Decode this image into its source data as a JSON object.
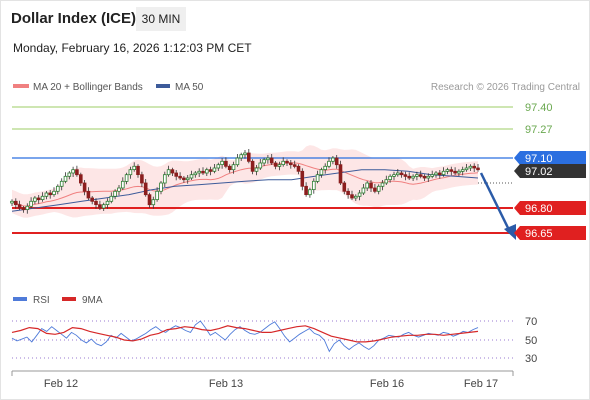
{
  "header": {
    "title": "Dollar Index (ICE)",
    "timeframe": "30 MIN",
    "datetime": "Monday, February 16, 2026 1:12:03 PM CET"
  },
  "colors": {
    "bollinger": "#f08080",
    "bollinger_fill": "#fde2e2",
    "ma50": "#3d5b9a",
    "target": "#7cb342",
    "pivot": "#2b6fe0",
    "support": "#e02020",
    "current": "#333333",
    "candle_up": "#2e7d32",
    "candle_down": "#8b1e1e",
    "rsi": "#4f7bd9",
    "rsi_ma": "#d62828",
    "arrow": "#2b5ba8"
  },
  "legend": {
    "bb_label": "MA 20 + Bollinger Bands",
    "ma50_label": "MA 50",
    "source": "Research © 2026 Trading Central"
  },
  "levels": {
    "r2": "97.40",
    "r1": "97.27",
    "pivot": "97.10",
    "last": "97.02",
    "s1": "96.80",
    "s2": "96.65"
  },
  "rsi_panel": {
    "rsi_label": "RSI",
    "ma_label": "9MA",
    "ticks": [
      "70",
      "50",
      "30"
    ]
  },
  "xaxis": {
    "labels": [
      "Feb 12",
      "Feb 13",
      "Feb 16",
      "Feb 17"
    ]
  },
  "chart_data": [
    {
      "type": "line",
      "title": "",
      "subtitle": "",
      "levels": {
        "resistance": [
          97.4,
          97.27
        ],
        "pivot": 97.1,
        "last": 97.02,
        "support": [
          96.8,
          96.65
        ]
      },
      "ylim": [
        96.55,
        97.55
      ],
      "x_labels": [
        "Feb 12",
        "Feb 13",
        "Feb 16",
        "Feb 17"
      ],
      "series": [
        {
          "name": "MA 20 + Bollinger Bands",
          "close": [
            96.84,
            96.82,
            96.8,
            96.79,
            96.81,
            96.84,
            96.86,
            96.85,
            96.87,
            96.89,
            96.88,
            96.9,
            96.93,
            96.96,
            96.99,
            97.01,
            97.03,
            97.0,
            96.95,
            96.9,
            96.86,
            96.84,
            96.82,
            96.8,
            96.82,
            96.84,
            96.87,
            96.9,
            96.92,
            96.96,
            97.0,
            97.03,
            97.05,
            97.0,
            96.95,
            96.88,
            96.82,
            96.85,
            96.9,
            96.95,
            97.0,
            97.03,
            97.01,
            96.99,
            96.98,
            96.97,
            96.98,
            97.0,
            97.01,
            97.02,
            97.01,
            97.03,
            97.02,
            97.04,
            97.06,
            97.08,
            97.05,
            97.03,
            97.06,
            97.1,
            97.12,
            97.13,
            97.08,
            97.02,
            97.04,
            97.07,
            97.09,
            97.1,
            97.07,
            97.05,
            97.06,
            97.08,
            97.07,
            97.06,
            97.05,
            97.02,
            96.93,
            96.88,
            96.91,
            96.96,
            97.0,
            97.03,
            97.05,
            97.08,
            97.1,
            97.06,
            96.95,
            96.9,
            96.88,
            96.86,
            96.87,
            96.89,
            96.92,
            96.95,
            96.92,
            96.9,
            96.93,
            96.95,
            96.97,
            96.99,
            97.0,
            97.01,
            97.0,
            96.99,
            96.98,
            96.99,
            97.0,
            96.99,
            96.98,
            96.99,
            97.0,
            97.01,
            97.0,
            97.02,
            97.03,
            97.02,
            97.01,
            97.02,
            97.03,
            97.04,
            97.05,
            97.04,
            97.03
          ]
        },
        {
          "name": "MA 50",
          "values": [
            96.78,
            96.8,
            96.82,
            96.84,
            96.86,
            96.88,
            96.91,
            96.93,
            96.94,
            96.95,
            96.96,
            96.97,
            96.97,
            96.99,
            97.01,
            97.03,
            97.03,
            97.02,
            97.0,
            96.99,
            96.98
          ]
        }
      ]
    },
    {
      "type": "line",
      "title": "",
      "ylim": [
        25,
        75
      ],
      "y_ticks": [
        70,
        50,
        30
      ],
      "series": [
        {
          "name": "RSI",
          "values": [
            52,
            49,
            51,
            53,
            48,
            55,
            62,
            59,
            64,
            60,
            56,
            52,
            58,
            55,
            50,
            47,
            51,
            46,
            44,
            48,
            55,
            52,
            57,
            53,
            49,
            51,
            54,
            57,
            61,
            64,
            60,
            58,
            62,
            65,
            63,
            60,
            58,
            66,
            70,
            63,
            55,
            58,
            54,
            50,
            56,
            61,
            64,
            60,
            57,
            56,
            58,
            62,
            66,
            69,
            62,
            54,
            48,
            52,
            56,
            59,
            62,
            57,
            55,
            50,
            38,
            46,
            50,
            44,
            40,
            44,
            47,
            43,
            40,
            44,
            50,
            52,
            55,
            54,
            53,
            56,
            58,
            55,
            53,
            55,
            57,
            56,
            55,
            58,
            57,
            54,
            56,
            59,
            58,
            61,
            63
          ]
        },
        {
          "name": "9MA",
          "values": [
            58,
            60,
            63,
            62,
            57,
            56,
            58,
            63,
            62,
            59,
            57,
            55,
            53,
            50,
            49,
            51,
            55,
            57,
            61,
            62,
            64,
            63,
            61,
            60,
            62,
            65,
            63,
            62,
            60,
            58,
            58,
            60,
            62,
            64,
            65,
            62,
            58,
            54,
            52,
            50,
            48,
            48,
            49,
            51,
            53,
            54,
            55,
            55,
            56,
            56,
            55,
            56,
            57,
            58,
            59
          ]
        }
      ]
    }
  ]
}
